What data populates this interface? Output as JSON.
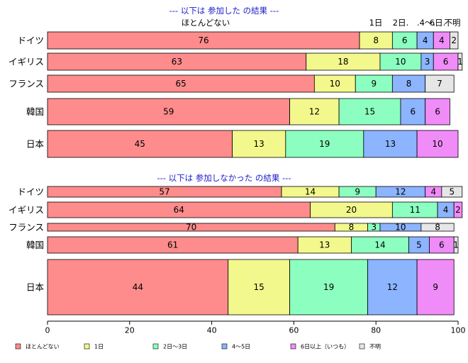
{
  "chart_data": {
    "type": "bar",
    "orientation": "horizontal",
    "stacked": true,
    "xlim": [
      0,
      100
    ],
    "x_ticks": [
      "0",
      "20",
      "40",
      "60",
      "80",
      "100"
    ],
    "column_labels": [
      "ほとんどない",
      "1日",
      "2日.",
      ".4〜.",
      "6日.",
      "不明"
    ],
    "series": [
      {
        "name": "ほとんどない",
        "color": "#ff8c8c"
      },
      {
        "name": "1日",
        "color": "#f3f88c"
      },
      {
        "name": "2日〜3日",
        "color": "#8cffc0"
      },
      {
        "name": "4〜5日",
        "color": "#8cb4ff"
      },
      {
        "name": "6日以上（いつも）",
        "color": "#f08cf8"
      },
      {
        "name": "不明",
        "color": "#e6e6e6"
      }
    ],
    "panels": [
      {
        "title": "--- 以下は 参加した の結果 ---",
        "rows": [
          {
            "label": "ドイツ",
            "values": [
              76,
              8,
              6,
              4,
              4,
              2
            ]
          },
          {
            "label": "イギリス",
            "values": [
              63,
              18,
              10,
              3,
              6,
              1
            ]
          },
          {
            "label": "フランス",
            "values": [
              65,
              10,
              9,
              8,
              0,
              7
            ]
          },
          {
            "label": "韓国",
            "values": [
              59,
              12,
              15,
              6,
              6,
              0
            ]
          },
          {
            "label": "日本",
            "values": [
              45,
              13,
              19,
              13,
              10,
              0
            ]
          }
        ]
      },
      {
        "title": "--- 以下は 参加しなかった の結果 ---",
        "rows": [
          {
            "label": "ドイツ",
            "values": [
              57,
              14,
              9,
              12,
              4,
              5
            ]
          },
          {
            "label": "イギリス",
            "values": [
              64,
              20,
              11,
              4,
              2,
              0
            ]
          },
          {
            "label": "フランス",
            "values": [
              70,
              8,
              3,
              10,
              0,
              8
            ]
          },
          {
            "label": "韓国",
            "values": [
              61,
              13,
              14,
              5,
              6,
              1
            ]
          },
          {
            "label": "日本",
            "values": [
              44,
              15,
              19,
              12,
              9,
              0
            ]
          }
        ]
      }
    ]
  }
}
